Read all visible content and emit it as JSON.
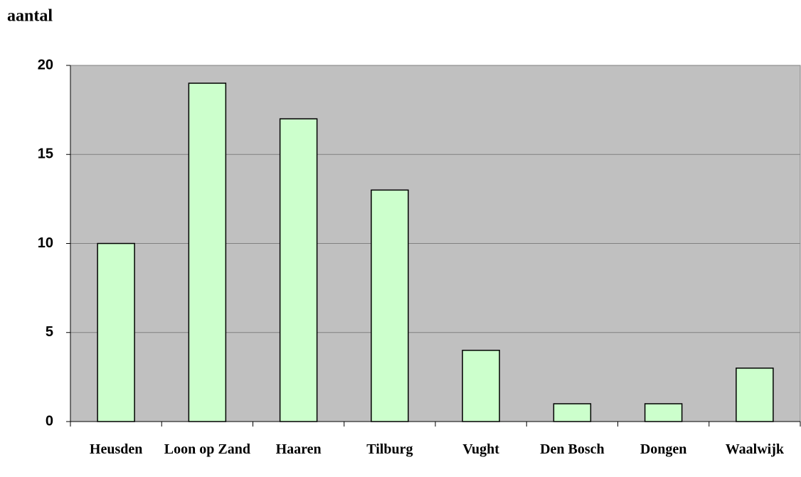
{
  "chart_data": {
    "type": "bar",
    "title": "aantal",
    "categories": [
      "Heusden",
      "Loon op Zand",
      "Haaren",
      "Tilburg",
      "Vught",
      "Den Bosch",
      "Dongen",
      "Waalwijk"
    ],
    "values": [
      10,
      19,
      17,
      13,
      4,
      1,
      1,
      3
    ],
    "color": "#ccffcc",
    "ylim": [
      0,
      20
    ],
    "yticks": [
      0,
      5,
      10,
      15,
      20
    ],
    "grid": true
  }
}
